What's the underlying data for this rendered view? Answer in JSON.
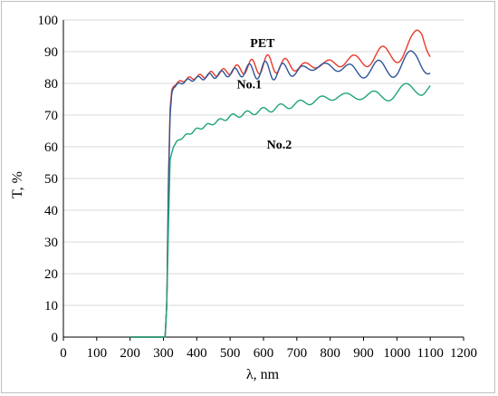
{
  "chart_data": {
    "type": "line",
    "xlabel": "λ, nm",
    "ylabel": "T, %",
    "xlim": [
      0,
      1200
    ],
    "ylim": [
      0,
      100
    ],
    "xticks": [
      0,
      100,
      200,
      300,
      400,
      500,
      600,
      700,
      800,
      900,
      1000,
      1100,
      1200
    ],
    "yticks": [
      0,
      10,
      20,
      30,
      40,
      50,
      60,
      70,
      80,
      90,
      100
    ],
    "grid": "horizontal",
    "legend": "none",
    "series": [
      {
        "name": "PET",
        "color": "#e83a2a",
        "x": [
          200,
          300,
          305,
          310,
          315,
          320,
          325,
          330,
          340,
          350,
          375,
          400,
          425,
          450,
          475,
          500,
          525,
          550,
          575,
          600,
          625,
          650,
          675,
          700,
          725,
          750,
          775,
          800,
          825,
          850,
          875,
          900,
          925,
          950,
          975,
          1000,
          1025,
          1050,
          1060,
          1075,
          1090,
          1100
        ],
        "y": [
          0,
          0,
          0,
          10,
          50,
          72,
          78,
          79,
          80,
          80.5,
          81.5,
          82,
          82.5,
          83,
          83.5,
          84,
          84.5,
          85,
          85.5,
          86,
          86,
          86,
          85.5,
          85.5,
          85.5,
          85.5,
          86,
          86.5,
          86.5,
          87,
          87,
          87.5,
          88,
          88.5,
          89,
          90,
          91,
          92,
          93,
          94,
          92,
          91
        ],
        "oscillation": [
          0,
          0,
          0,
          0,
          0,
          0,
          0,
          0,
          0.3,
          0.4,
          0.5,
          0.6,
          0.8,
          1,
          1,
          1.2,
          1.5,
          2,
          2.5,
          3,
          3,
          2.5,
          2,
          1.5,
          1,
          0.8,
          0.8,
          1,
          1.3,
          1.6,
          2,
          2.3,
          2.6,
          3,
          3.2,
          3.5,
          3.8,
          4,
          4,
          4,
          3.5,
          3
        ]
      },
      {
        "name": "No.1",
        "color": "#2f5597",
        "x": [
          200,
          300,
          305,
          310,
          315,
          320,
          325,
          330,
          340,
          350,
          375,
          400,
          425,
          450,
          475,
          500,
          525,
          550,
          575,
          600,
          625,
          650,
          675,
          700,
          725,
          750,
          775,
          800,
          825,
          850,
          875,
          900,
          925,
          950,
          975,
          1000,
          1025,
          1050,
          1060,
          1075,
          1090,
          1100
        ],
        "y": [
          0,
          0,
          0,
          10,
          48,
          70,
          77,
          78.5,
          79.5,
          80,
          81,
          81.5,
          82,
          82.5,
          83,
          83.3,
          83.6,
          84,
          84,
          84,
          84,
          84,
          84,
          84,
          84.5,
          85,
          85.5,
          85.5,
          85,
          84.5,
          84,
          84,
          84,
          84.5,
          85,
          85.5,
          86,
          86.5,
          87,
          87,
          86.5,
          86
        ],
        "oscillation": [
          0,
          0,
          0,
          0,
          0,
          0,
          0,
          0,
          0.3,
          0.4,
          0.5,
          0.6,
          0.8,
          1,
          1,
          1.2,
          1.5,
          2,
          2.5,
          3,
          3,
          2.5,
          2,
          1.5,
          1,
          0.8,
          0.8,
          1,
          1.3,
          1.6,
          2,
          2.3,
          2.6,
          3,
          3.2,
          3.5,
          3.8,
          4,
          4,
          4,
          3.5,
          3
        ]
      },
      {
        "name": "No.2",
        "color": "#1fa673",
        "x": [
          200,
          300,
          305,
          310,
          315,
          320,
          330,
          340,
          350,
          375,
          400,
          425,
          450,
          475,
          500,
          525,
          550,
          575,
          600,
          625,
          650,
          675,
          700,
          725,
          750,
          775,
          800,
          825,
          850,
          875,
          900,
          925,
          950,
          975,
          1000,
          1025,
          1050,
          1075,
          1090,
          1100
        ],
        "y": [
          0,
          0,
          0,
          10,
          35,
          56,
          60,
          61.5,
          62.5,
          64,
          65.5,
          66.5,
          67.5,
          68.5,
          69.5,
          70,
          70.5,
          71,
          71.5,
          72,
          72.5,
          73,
          73.5,
          74,
          74.5,
          75,
          75.5,
          76,
          76,
          76,
          76,
          76,
          76,
          76.5,
          77,
          77.5,
          78,
          79,
          80,
          80
        ],
        "oscillation": [
          0,
          0,
          0,
          0,
          0,
          0,
          0,
          0.3,
          0.3,
          0.4,
          0.4,
          0.5,
          0.5,
          0.6,
          0.7,
          0.7,
          0.8,
          0.8,
          0.9,
          1,
          1,
          1,
          1,
          1,
          1,
          1,
          1,
          0.9,
          0.9,
          1,
          1.2,
          1.5,
          1.8,
          2,
          2.2,
          2.4,
          2.6,
          2.8,
          2.8,
          2.5
        ]
      }
    ],
    "annotations": [
      {
        "text": "PET",
        "x": 560,
        "y": 91.5
      },
      {
        "text": "No.1",
        "x": 520,
        "y": 78.5
      },
      {
        "text": "No.2",
        "x": 610,
        "y": 59.5
      }
    ]
  }
}
